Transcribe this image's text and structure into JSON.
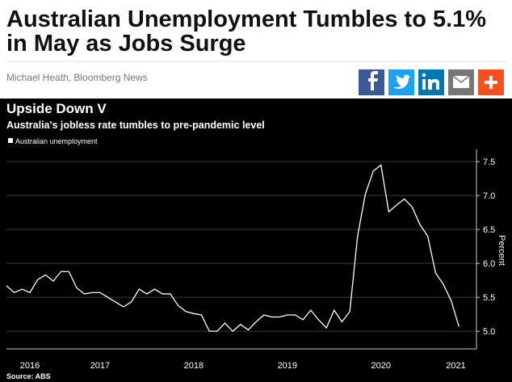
{
  "header": {
    "title_lines": [
      "Australian Unemployment Tumbles to 5.1%",
      "in May as Jobs Surge"
    ],
    "byline": "Michael Heath, Bloomberg News"
  },
  "chart_data": {
    "type": "line",
    "title": "Upside Down V",
    "subtitle": "Australia's jobless rate tumbles to pre-pandemic level",
    "y_label": "Percent",
    "source": "Source: ABS",
    "x": [
      2016.5,
      2016.583,
      2016.667,
      2016.75,
      2016.833,
      2016.917,
      2017,
      2017.083,
      2017.167,
      2017.25,
      2017.333,
      2017.417,
      2017.5,
      2017.583,
      2017.667,
      2017.75,
      2017.833,
      2017.917,
      2018,
      2018.083,
      2018.167,
      2018.25,
      2018.333,
      2018.417,
      2018.5,
      2018.583,
      2018.667,
      2018.75,
      2018.833,
      2018.917,
      2019,
      2019.083,
      2019.167,
      2019.25,
      2019.333,
      2019.417,
      2019.5,
      2019.583,
      2019.667,
      2019.75,
      2019.833,
      2019.917,
      2020,
      2020.083,
      2020.167,
      2020.25,
      2020.333,
      2020.417,
      2020.5,
      2020.583,
      2020.667,
      2020.75,
      2020.833,
      2020.917,
      2021,
      2021.083,
      2021.167,
      2021.25,
      2021.333
    ],
    "series": [
      {
        "name": "Australian unemployment",
        "color": "#ffffff",
        "values": [
          5.67,
          5.57,
          5.62,
          5.57,
          5.76,
          5.83,
          5.74,
          5.88,
          5.88,
          5.64,
          5.55,
          5.57,
          5.57,
          5.5,
          5.43,
          5.36,
          5.43,
          5.62,
          5.55,
          5.62,
          5.55,
          5.55,
          5.38,
          5.29,
          5.26,
          5.24,
          5.0,
          5.0,
          5.12,
          5.0,
          5.1,
          5.02,
          5.14,
          5.24,
          5.21,
          5.21,
          5.24,
          5.24,
          5.17,
          5.31,
          5.17,
          5.05,
          5.31,
          5.14,
          5.29,
          6.4,
          7.02,
          7.36,
          7.45,
          6.76,
          6.86,
          6.95,
          6.83,
          6.57,
          6.4,
          5.86,
          5.69,
          5.45,
          5.07
        ]
      }
    ],
    "xlim": [
      2016.5,
      2021.52
    ],
    "xticks": [
      {
        "value": 2016.75,
        "label": "2016"
      },
      {
        "value": 2017.5,
        "label": "2017"
      },
      {
        "value": 2018.5,
        "label": "2018"
      },
      {
        "value": 2019.5,
        "label": "2019"
      },
      {
        "value": 2020.5,
        "label": "2020"
      },
      {
        "value": 2021.3,
        "label": "2021"
      }
    ],
    "ylim": [
      4.74,
      7.68
    ],
    "yticks": [
      {
        "value": 5,
        "label": "5.0"
      },
      {
        "value": 5.5,
        "label": "5.5"
      },
      {
        "value": 6,
        "label": "6.0"
      },
      {
        "value": 6.5,
        "label": "6.5"
      },
      {
        "value": 7,
        "label": "7.0"
      },
      {
        "value": 7.5,
        "label": "7.5"
      }
    ],
    "grid": true
  }
}
